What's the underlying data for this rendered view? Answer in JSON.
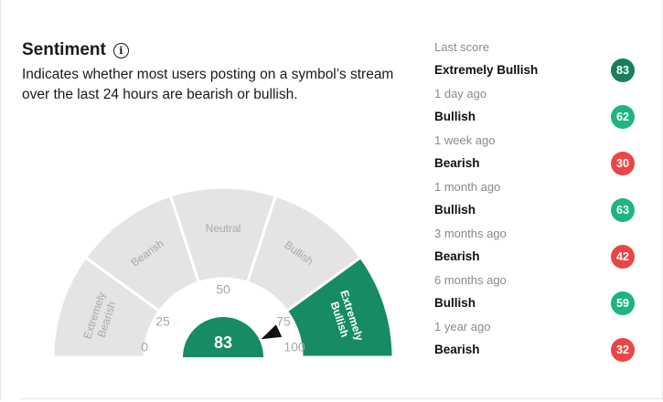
{
  "header": {
    "title": "Sentiment",
    "info_icon": "info-icon",
    "description": "Indicates whether most users posting on a symbol’s stream over the last 24 hours are bearish or bullish."
  },
  "gauge": {
    "current_score": "83",
    "current_value": 83,
    "needle_value": 83,
    "active_segment": "Extremely Bullish",
    "segments": [
      {
        "label_lines": [
          "Extremely",
          "Bearish"
        ],
        "active": false
      },
      {
        "label_lines": [
          "Bearish"
        ],
        "active": false
      },
      {
        "label_lines": [
          "Neutral"
        ],
        "active": false
      },
      {
        "label_lines": [
          "Bullish"
        ],
        "active": false
      },
      {
        "label_lines": [
          "Extremely",
          "Bullish"
        ],
        "active": true
      }
    ],
    "ticks": [
      "0",
      "25",
      "50",
      "75",
      "100"
    ],
    "colors": {
      "inactive": "#e4e4e4",
      "inactive_text": "#a8a8a8",
      "active": "#168b64",
      "active_text": "#ffffff",
      "needle": "#111111"
    }
  },
  "history": [
    {
      "when": "Last score",
      "label": "Extremely Bullish",
      "score": "83",
      "color": "#167f5c"
    },
    {
      "when": "1 day ago",
      "label": "Bullish",
      "score": "62",
      "color": "#20b47e"
    },
    {
      "when": "1 week ago",
      "label": "Bearish",
      "score": "30",
      "color": "#ea4646"
    },
    {
      "when": "1 month ago",
      "label": "Bullish",
      "score": "63",
      "color": "#20b47e"
    },
    {
      "when": "3 months ago",
      "label": "Bearish",
      "score": "42",
      "color": "#ea4646"
    },
    {
      "when": "6 months ago",
      "label": "Bullish",
      "score": "59",
      "color": "#20b47e"
    },
    {
      "when": "1 year ago",
      "label": "Bearish",
      "score": "32",
      "color": "#ea4646"
    }
  ]
}
